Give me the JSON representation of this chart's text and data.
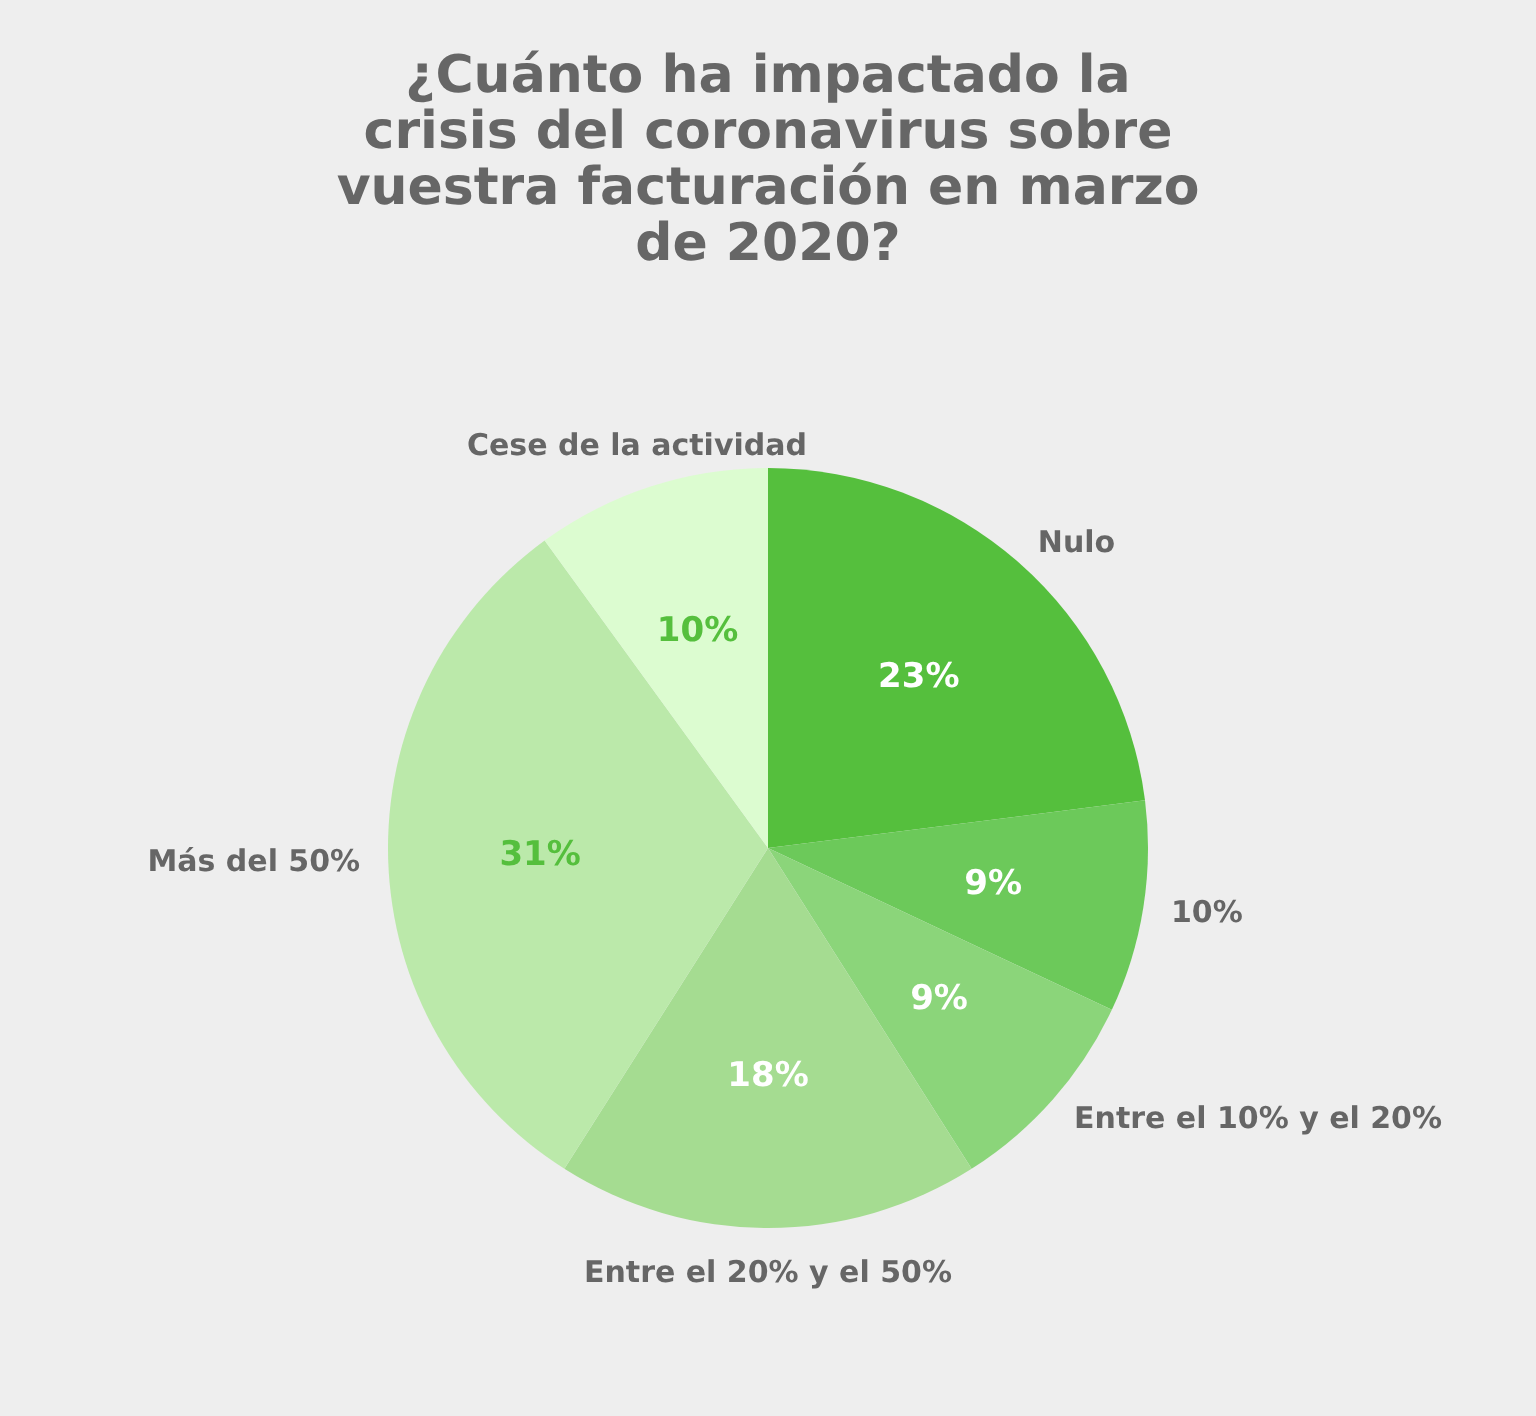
{
  "chart_data": {
    "type": "pie",
    "title": "¿Cuánto ha impactado la crisis del coronavirus sobre vuestra facturación en marzo de 2020?",
    "categories": [
      "Nulo",
      "10%",
      "Entre el 10% y el 20%",
      "Entre el 20% y el 50%",
      "Más del 50%",
      "Cese de la actividad"
    ],
    "values": [
      23,
      9,
      9,
      18,
      31,
      10
    ],
    "value_labels": [
      "23%",
      "9%",
      "9%",
      "18%",
      "31%",
      "10%"
    ],
    "colors": [
      "#55bf3d",
      "#6cc95a",
      "#8bd57a",
      "#a5dc91",
      "#bbe9aa",
      "#dcfcd0"
    ],
    "legend": false
  }
}
